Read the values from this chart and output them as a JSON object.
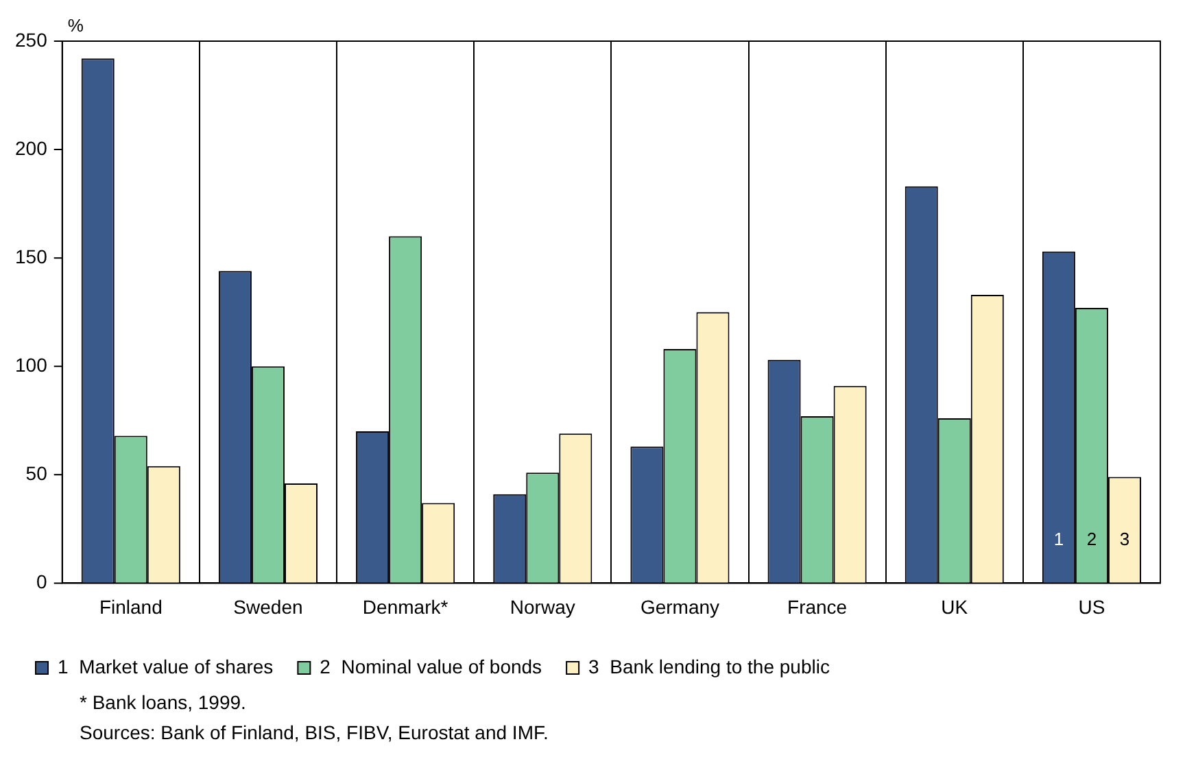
{
  "chart_data": {
    "type": "bar",
    "ylabel": "%",
    "categories": [
      "Finland",
      "Sweden",
      "Denmark*",
      "Norway",
      "Germany",
      "France",
      "UK",
      "US"
    ],
    "series": [
      {
        "name": "1  Market value of shares",
        "color": "#3a5a8c",
        "values": [
          242,
          144,
          70,
          41,
          63,
          103,
          183,
          153
        ]
      },
      {
        "name": "2  Nominal value of bonds",
        "color": "#80cc9f",
        "values": [
          68,
          100,
          160,
          51,
          108,
          77,
          76,
          127
        ]
      },
      {
        "name": "3  Bank lending to the public",
        "color": "#fdf0c3",
        "values": [
          54,
          46,
          37,
          69,
          125,
          91,
          133,
          49
        ]
      }
    ],
    "ylim": [
      0,
      250
    ],
    "yticks": [
      0,
      50,
      100,
      150,
      200,
      250
    ],
    "grid": "x",
    "legend": "bottom",
    "annotations": [
      "1",
      "2",
      "3",
      "* Bank loans, 1999.",
      "Sources: Bank of Finland, BIS, FIBV, Eurostat and IMF."
    ]
  }
}
